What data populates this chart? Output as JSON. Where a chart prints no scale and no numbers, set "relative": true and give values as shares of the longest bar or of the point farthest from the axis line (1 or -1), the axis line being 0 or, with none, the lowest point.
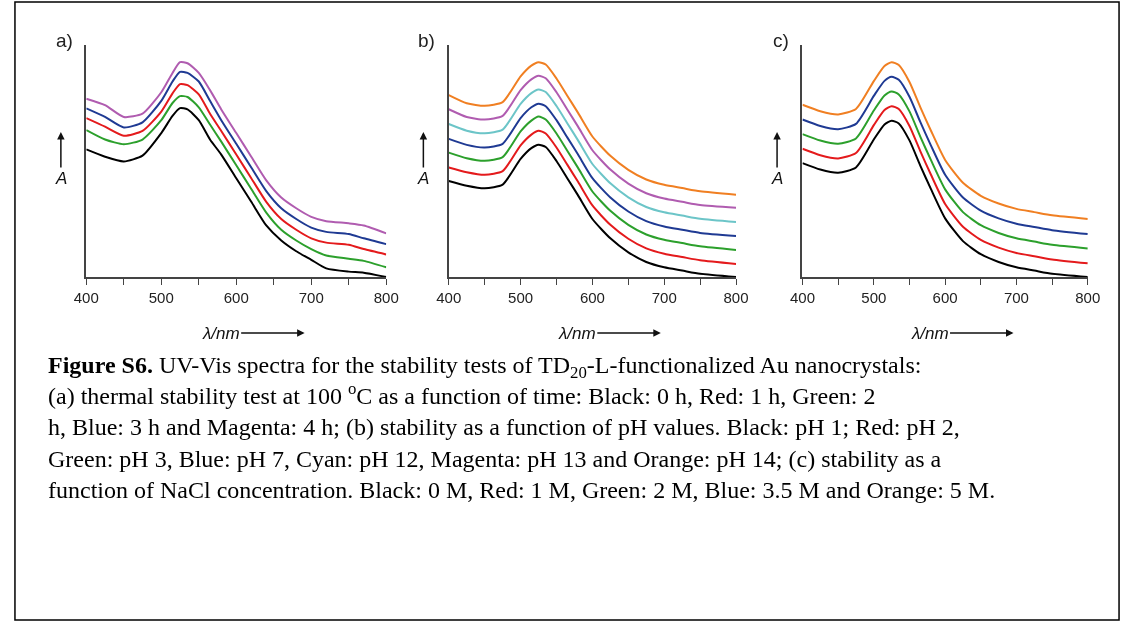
{
  "chart_data": [
    {
      "type": "line",
      "title": "a)",
      "xlabel": "λ/nm",
      "ylabel": "A",
      "relative": true,
      "x": [
        400,
        425,
        450,
        475,
        500,
        515,
        525,
        535,
        550,
        565,
        580,
        600,
        620,
        640,
        660,
        680,
        700,
        720,
        750,
        770,
        800
      ],
      "xlim": [
        400,
        800
      ],
      "xticks": [
        400,
        {
          "value": 450,
          "label": null
        },
        500,
        {
          "value": 550,
          "label": null
        },
        600,
        {
          "value": 650,
          "label": null
        },
        700,
        {
          "value": 750,
          "label": null
        },
        800
      ],
      "series": [
        {
          "color": "#000000",
          "values": [
            0.594,
            0.56,
            0.538,
            0.565,
            0.67,
            0.75,
            0.786,
            0.78,
            0.73,
            0.64,
            0.57,
            0.46,
            0.35,
            0.24,
            0.17,
            0.12,
            0.08,
            0.04,
            0.025,
            0.02,
            0
          ]
        },
        {
          "color": "#2ca02c",
          "values": [
            0.684,
            0.64,
            0.618,
            0.64,
            0.73,
            0.81,
            0.842,
            0.838,
            0.79,
            0.71,
            0.63,
            0.52,
            0.41,
            0.3,
            0.22,
            0.17,
            0.13,
            0.1,
            0.085,
            0.075,
            0.045
          ]
        },
        {
          "color": "#e41a1c",
          "values": [
            0.74,
            0.7,
            0.658,
            0.68,
            0.77,
            0.855,
            0.898,
            0.893,
            0.85,
            0.76,
            0.68,
            0.57,
            0.46,
            0.35,
            0.27,
            0.22,
            0.18,
            0.16,
            0.15,
            0.13,
            0.105
          ]
        },
        {
          "color": "#1f3a93",
          "values": [
            0.785,
            0.745,
            0.696,
            0.72,
            0.82,
            0.91,
            0.955,
            0.95,
            0.91,
            0.82,
            0.73,
            0.62,
            0.51,
            0.4,
            0.32,
            0.27,
            0.23,
            0.21,
            0.2,
            0.18,
            0.153
          ]
        },
        {
          "color": "#b05cb0",
          "values": [
            0.83,
            0.8,
            0.745,
            0.76,
            0.86,
            0.95,
            1,
            0.995,
            0.95,
            0.87,
            0.78,
            0.67,
            0.56,
            0.45,
            0.37,
            0.32,
            0.28,
            0.26,
            0.25,
            0.24,
            0.203
          ]
        }
      ],
      "annotations": [
        "Figure S6.",
        "UV-Vis spectra for the stability tests of TD$_{20}$-L-functionalized Au nanocrystals: (a) thermal stability test at 100 $^{o}$C as a function of time: Black: 0 h, Red: 1 h, Green: 2 h, Blue: 3 h and Magenta: 4 h; (b) stability as a function of pH values. Black: pH 1; Red: pH 2, Green: pH 3, Blue: pH 7, Cyan: pH 12, Magenta: pH 13 and Orange: pH 14; (c) stability as a function of NaCl concentration. Black: 0 M, Red: 1 M, Green: 2 M, Blue: 3.5 M and Orange: 5 M."
      ]
    },
    {
      "type": "line",
      "title": "b)",
      "xlabel": "λ/nm",
      "ylabel": "A",
      "relative": true,
      "x": [
        400,
        425,
        450,
        475,
        500,
        515,
        525,
        535,
        550,
        565,
        580,
        600,
        625,
        650,
        675,
        700,
        725,
        750,
        800
      ],
      "xlim": [
        400,
        800
      ],
      "xticks": [
        400,
        {
          "value": 450,
          "label": null
        },
        500,
        {
          "value": 550,
          "label": null
        },
        600,
        {
          "value": 650,
          "label": null
        },
        700,
        {
          "value": 750,
          "label": null
        },
        800
      ],
      "series": [
        {
          "color": "#000000",
          "values": [
            0.447,
            0.425,
            0.413,
            0.43,
            0.55,
            0.6,
            0.616,
            0.605,
            0.54,
            0.46,
            0.38,
            0.27,
            0.18,
            0.115,
            0.07,
            0.045,
            0.03,
            0.015,
            0
          ]
        },
        {
          "color": "#e41a1c",
          "values": [
            0.51,
            0.488,
            0.476,
            0.493,
            0.613,
            0.663,
            0.681,
            0.668,
            0.603,
            0.523,
            0.443,
            0.333,
            0.243,
            0.178,
            0.133,
            0.108,
            0.093,
            0.078,
            0.061
          ]
        },
        {
          "color": "#2ca02c",
          "values": [
            0.579,
            0.553,
            0.541,
            0.558,
            0.678,
            0.728,
            0.747,
            0.733,
            0.668,
            0.588,
            0.508,
            0.398,
            0.308,
            0.243,
            0.198,
            0.173,
            0.158,
            0.143,
            0.126
          ]
        },
        {
          "color": "#1f3a93",
          "values": [
            0.643,
            0.615,
            0.603,
            0.62,
            0.74,
            0.79,
            0.807,
            0.795,
            0.73,
            0.65,
            0.57,
            0.46,
            0.37,
            0.305,
            0.26,
            0.235,
            0.22,
            0.205,
            0.191
          ]
        },
        {
          "color": "#6cc5c8",
          "values": [
            0.712,
            0.681,
            0.669,
            0.686,
            0.806,
            0.856,
            0.873,
            0.861,
            0.796,
            0.716,
            0.636,
            0.526,
            0.436,
            0.371,
            0.326,
            0.301,
            0.286,
            0.271,
            0.256
          ]
        },
        {
          "color": "#b05cb0",
          "values": [
            0.781,
            0.745,
            0.733,
            0.75,
            0.87,
            0.92,
            0.937,
            0.925,
            0.86,
            0.78,
            0.7,
            0.59,
            0.5,
            0.435,
            0.39,
            0.365,
            0.35,
            0.335,
            0.322
          ]
        },
        {
          "color": "#f07f22",
          "values": [
            0.847,
            0.809,
            0.797,
            0.814,
            0.934,
            0.984,
            1,
            0.989,
            0.924,
            0.844,
            0.764,
            0.654,
            0.564,
            0.499,
            0.454,
            0.429,
            0.414,
            0.399,
            0.383
          ]
        }
      ]
    },
    {
      "type": "line",
      "title": "c)",
      "xlabel": "λ/nm",
      "ylabel": "A",
      "relative": true,
      "x": [
        400,
        425,
        450,
        475,
        500,
        515,
        525,
        535,
        550,
        565,
        580,
        600,
        625,
        650,
        675,
        700,
        725,
        750,
        800
      ],
      "xlim": [
        400,
        800
      ],
      "xticks": [
        400,
        {
          "value": 450,
          "label": null
        },
        500,
        {
          "value": 550,
          "label": null
        },
        600,
        {
          "value": 650,
          "label": null
        },
        700,
        {
          "value": 750,
          "label": null
        },
        800
      ],
      "series": [
        {
          "color": "#000000",
          "values": [
            0.53,
            0.5,
            0.485,
            0.51,
            0.64,
            0.71,
            0.727,
            0.715,
            0.636,
            0.52,
            0.41,
            0.273,
            0.167,
            0.106,
            0.07,
            0.045,
            0.03,
            0.015,
            0
          ]
        },
        {
          "color": "#e41a1c",
          "values": [
            0.597,
            0.567,
            0.552,
            0.577,
            0.707,
            0.777,
            0.795,
            0.782,
            0.703,
            0.587,
            0.477,
            0.34,
            0.234,
            0.173,
            0.137,
            0.112,
            0.097,
            0.082,
            0.064
          ]
        },
        {
          "color": "#2ca02c",
          "values": [
            0.665,
            0.635,
            0.62,
            0.645,
            0.775,
            0.845,
            0.864,
            0.85,
            0.771,
            0.655,
            0.545,
            0.408,
            0.302,
            0.241,
            0.205,
            0.18,
            0.165,
            0.15,
            0.133
          ]
        },
        {
          "color": "#1f3a93",
          "values": [
            0.733,
            0.703,
            0.688,
            0.713,
            0.843,
            0.913,
            0.932,
            0.918,
            0.839,
            0.723,
            0.613,
            0.476,
            0.37,
            0.309,
            0.273,
            0.248,
            0.233,
            0.218,
            0.2
          ]
        },
        {
          "color": "#f07f22",
          "values": [
            0.802,
            0.772,
            0.757,
            0.782,
            0.912,
            0.982,
            1,
            0.987,
            0.908,
            0.792,
            0.682,
            0.545,
            0.439,
            0.378,
            0.342,
            0.317,
            0.302,
            0.287,
            0.27
          ]
        }
      ]
    }
  ]
}
